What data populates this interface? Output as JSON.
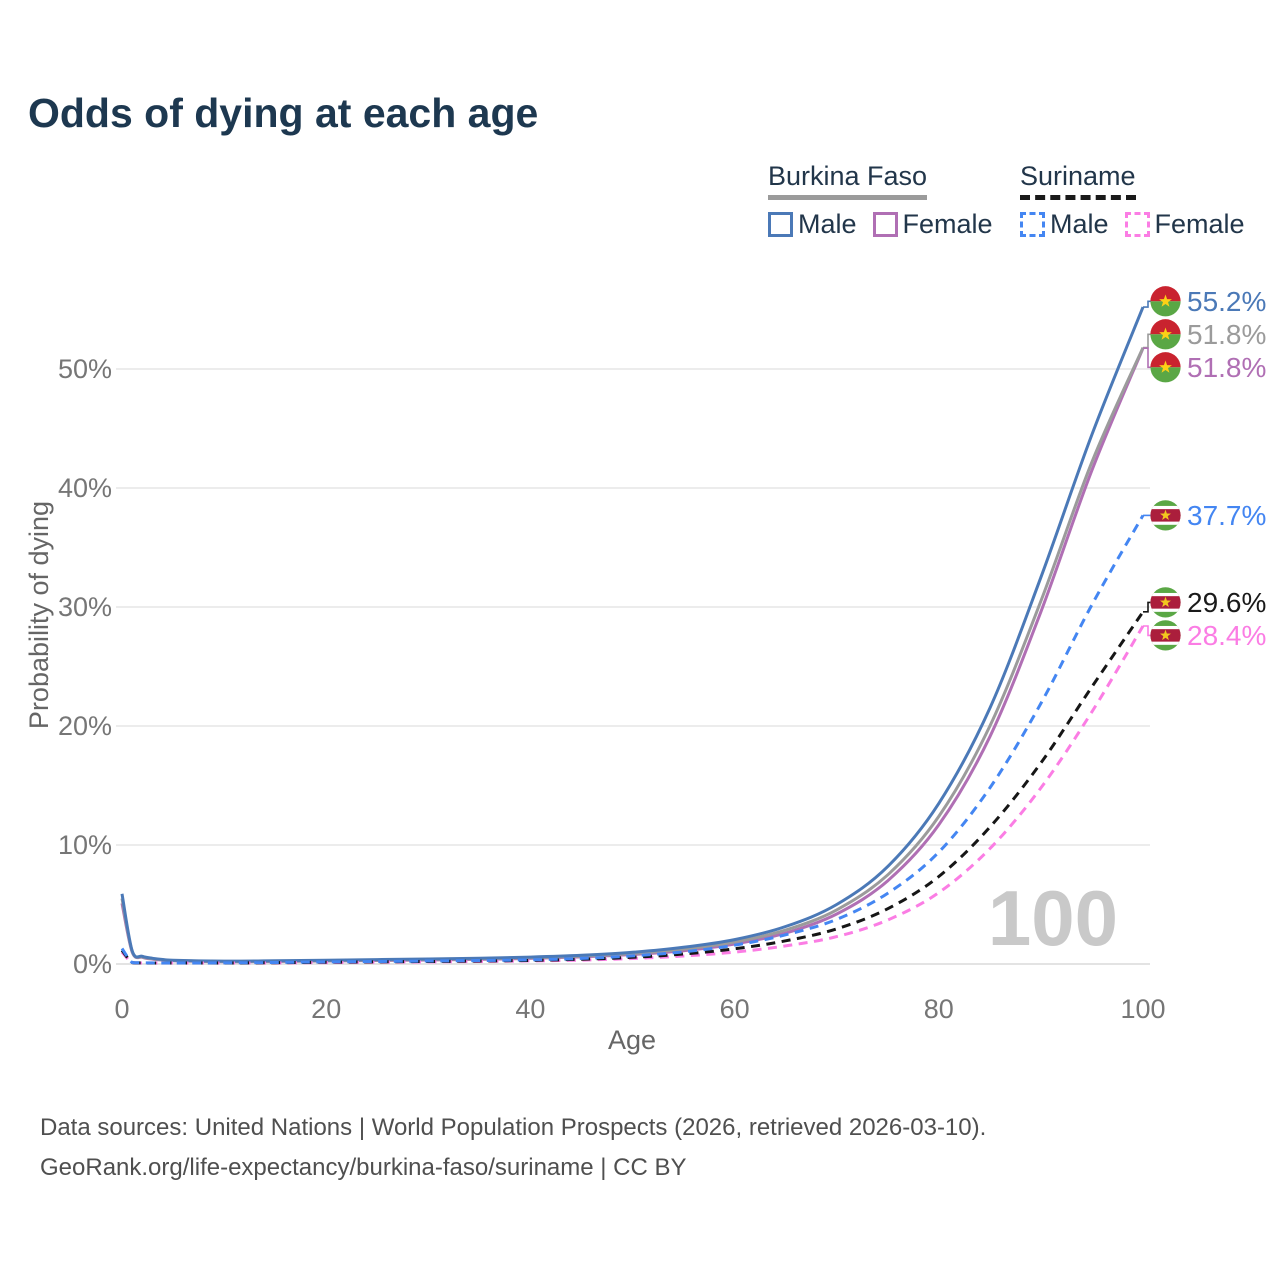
{
  "title": "Odds of dying at each age",
  "legend": {
    "groups": [
      {
        "country": "Burkina Faso",
        "line_style": "solid",
        "underline_color": "#9b9b9b",
        "items": [
          {
            "label": "Male",
            "color": "#4B79B7"
          },
          {
            "label": "Female",
            "color": "#B06FB4"
          }
        ]
      },
      {
        "country": "Suriname",
        "line_style": "dashed",
        "underline_color": "#1a1a1a",
        "items": [
          {
            "label": "Male",
            "color": "#4486F2"
          },
          {
            "label": "Female",
            "color": "#FB7DE4"
          }
        ]
      }
    ]
  },
  "watermark": "100",
  "footer": {
    "line1": "Data sources: United Nations | World Population Prospects (2026, retrieved 2026-03-10).",
    "line2": "GeoRank.org/life-expectancy/burkina-faso/suriname | CC BY"
  },
  "chart_data": {
    "type": "line",
    "title": "Odds of dying at each age",
    "xlabel": "Age",
    "ylabel": "Probability of dying",
    "xlim": [
      0,
      100
    ],
    "ylim": [
      0,
      57.5
    ],
    "grid": true,
    "legend_position": "top-right",
    "x_ticks": [
      0,
      20,
      40,
      60,
      80,
      100
    ],
    "y_ticks": [
      {
        "value": 0,
        "label": "0%"
      },
      {
        "value": 10,
        "label": "10%"
      },
      {
        "value": 20,
        "label": "20%"
      },
      {
        "value": 30,
        "label": "30%"
      },
      {
        "value": 40,
        "label": "40%"
      },
      {
        "value": 50,
        "label": "50%"
      }
    ],
    "ages": [
      0,
      1,
      2,
      3,
      4,
      5,
      10,
      15,
      20,
      25,
      30,
      35,
      40,
      45,
      50,
      55,
      60,
      65,
      70,
      75,
      80,
      85,
      90,
      95,
      100
    ],
    "series": [
      {
        "name": "Burkina Faso Male",
        "color": "#4B79B7",
        "dash": false,
        "flag": "burkina-faso",
        "end_label": "55.2%",
        "label_color": "#4B79B7",
        "values": [
          5.9,
          1.1,
          0.65,
          0.48,
          0.38,
          0.32,
          0.24,
          0.27,
          0.32,
          0.37,
          0.42,
          0.48,
          0.58,
          0.73,
          0.98,
          1.4,
          2.05,
          3.15,
          5.0,
          8.2,
          13.5,
          21.5,
          32.5,
          44.5,
          55.2
        ]
      },
      {
        "name": "Burkina Faso",
        "color": "#9b9b9b",
        "dash": false,
        "flag": "burkina-faso",
        "end_label": "51.8%",
        "label_color": "#9b9b9b",
        "values": [
          5.5,
          1.05,
          0.6,
          0.44,
          0.35,
          0.29,
          0.21,
          0.24,
          0.28,
          0.33,
          0.38,
          0.43,
          0.52,
          0.66,
          0.88,
          1.25,
          1.85,
          2.85,
          4.55,
          7.5,
          12.4,
          20.0,
          30.5,
          42.2,
          51.8
        ]
      },
      {
        "name": "Burkina Faso Female",
        "color": "#B06FB4",
        "dash": false,
        "flag": "burkina-faso",
        "end_label": "51.8%",
        "label_color": "#B06FB4",
        "values": [
          5.1,
          1.0,
          0.56,
          0.41,
          0.33,
          0.27,
          0.19,
          0.21,
          0.25,
          0.29,
          0.34,
          0.39,
          0.47,
          0.6,
          0.8,
          1.12,
          1.68,
          2.6,
          4.2,
          7.0,
          11.7,
          19.1,
          29.6,
          41.5,
          51.75
        ]
      },
      {
        "name": "Suriname Male",
        "color": "#4486F2",
        "dash": true,
        "flag": "suriname",
        "end_label": "37.7%",
        "label_color": "#4486F2",
        "values": [
          1.3,
          0.13,
          0.1,
          0.09,
          0.08,
          0.08,
          0.09,
          0.13,
          0.18,
          0.21,
          0.25,
          0.29,
          0.35,
          0.47,
          0.68,
          1.02,
          1.58,
          2.45,
          3.75,
          5.95,
          9.4,
          14.8,
          21.9,
          30.2,
          37.7
        ]
      },
      {
        "name": "Suriname",
        "color": "#161616",
        "dash": true,
        "flag": "suriname",
        "end_label": "29.6%",
        "label_color": "#1a1a1a",
        "values": [
          1.15,
          0.12,
          0.09,
          0.08,
          0.07,
          0.07,
          0.08,
          0.11,
          0.15,
          0.18,
          0.21,
          0.25,
          0.3,
          0.4,
          0.56,
          0.84,
          1.28,
          1.95,
          2.95,
          4.65,
          7.35,
          11.5,
          16.9,
          23.3,
          29.6
        ]
      },
      {
        "name": "Suriname Female",
        "color": "#FB7DE4",
        "dash": true,
        "flag": "suriname",
        "end_label": "28.4%",
        "label_color": "#FB7DE4",
        "values": [
          1.0,
          0.11,
          0.08,
          0.07,
          0.06,
          0.06,
          0.07,
          0.09,
          0.12,
          0.15,
          0.18,
          0.21,
          0.26,
          0.33,
          0.46,
          0.67,
          1.0,
          1.52,
          2.3,
          3.7,
          6.0,
          9.7,
          14.8,
          21.2,
          28.4
        ]
      }
    ]
  }
}
